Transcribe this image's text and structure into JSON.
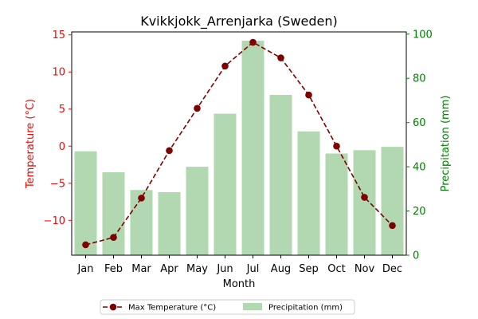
{
  "chart_data": {
    "type": "bar+line",
    "title": "Kvikkjokk_Arrenjarka (Sweden)",
    "xlabel": "Month",
    "ylabel_left": "Temperature (°C)",
    "ylabel_right": "Precipitation (mm)",
    "categories": [
      "Jan",
      "Feb",
      "Mar",
      "Apr",
      "May",
      "Jun",
      "Jul",
      "Aug",
      "Sep",
      "Oct",
      "Nov",
      "Dec"
    ],
    "y_left": {
      "lim": [
        -14.7,
        15.4
      ],
      "ticks": [
        -10,
        -5,
        0,
        5,
        10,
        15
      ],
      "tick_labels": [
        "−10",
        "−5",
        "0",
        "5",
        "10",
        "15"
      ]
    },
    "y_right": {
      "lim": [
        0,
        101
      ],
      "ticks": [
        0,
        20,
        40,
        60,
        80,
        100
      ],
      "tick_labels": [
        "0",
        "20",
        "40",
        "60",
        "80",
        "100"
      ]
    },
    "series": [
      {
        "name": "Max Temperature (°C)",
        "kind": "line",
        "axis": "left",
        "color": "#800000",
        "values": [
          -13.3,
          -12.3,
          -7.0,
          -0.6,
          5.1,
          10.8,
          14.0,
          11.9,
          6.9,
          0.0,
          -6.9,
          -10.7
        ]
      },
      {
        "name": "Precipitation (mm)",
        "kind": "bar",
        "axis": "right",
        "color": "#b2d8b2",
        "values": [
          47,
          37.5,
          29.5,
          28.5,
          40,
          64,
          97,
          72.5,
          56,
          46,
          47.5,
          49
        ]
      }
    ],
    "legend_position": "bottom-center",
    "left_axis_color": "#ff0000",
    "right_axis_color": "#008000"
  }
}
